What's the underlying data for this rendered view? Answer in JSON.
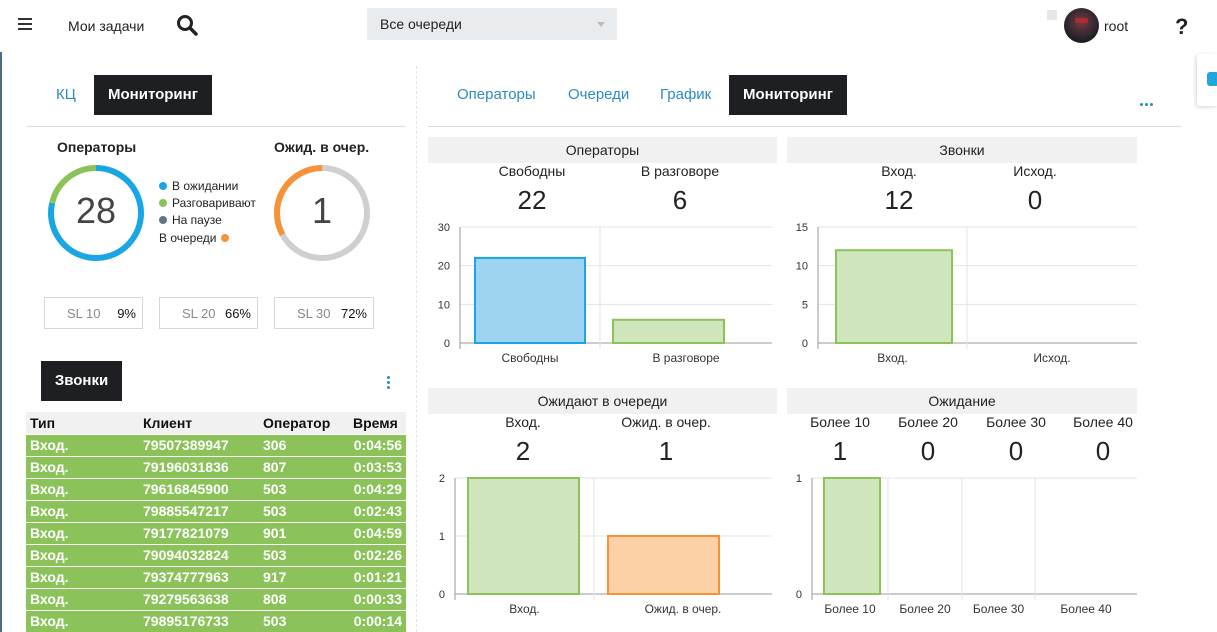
{
  "header": {
    "my_tasks": "Мои задачи",
    "queue_select": "Все очереди",
    "user": "root",
    "help": "?"
  },
  "left": {
    "tabs": [
      {
        "label": "КЦ",
        "active": false
      },
      {
        "label": "Мониторинг",
        "active": true
      }
    ],
    "operators": {
      "title": "Операторы",
      "value": "28",
      "legend": [
        {
          "label": "В ожидании",
          "color": "#1aa6e4"
        },
        {
          "label": "Разговаривают",
          "color": "#8bc35a"
        },
        {
          "label": "На паузе",
          "color": "#5f7585"
        },
        {
          "label": "В очереди",
          "color": "#f7923a"
        }
      ],
      "segments": [
        {
          "name": "В ожидании",
          "value": 22,
          "color": "#1aa6e4"
        },
        {
          "name": "Разговаривают",
          "value": 6,
          "color": "#8bc35a"
        }
      ]
    },
    "queue_wait": {
      "title": "Ожид. в очер.",
      "value": "1",
      "fraction": 0.33,
      "color": "#f7923a"
    },
    "sl": [
      {
        "label": "SL 10",
        "value": "9%"
      },
      {
        "label": "SL 20",
        "value": "66%"
      },
      {
        "label": "SL 30",
        "value": "72%"
      }
    ],
    "calls_button": "Звонки",
    "calls_table": {
      "columns": [
        "Тип",
        "Клиент",
        "Оператор",
        "Время"
      ],
      "rows": [
        [
          "Вход.",
          "79507389947",
          "306",
          "0:04:56"
        ],
        [
          "Вход.",
          "79196031836",
          "807",
          "0:03:53"
        ],
        [
          "Вход.",
          "79616845900",
          "503",
          "0:04:29"
        ],
        [
          "Вход.",
          "79885547217",
          "503",
          "0:02:43"
        ],
        [
          "Вход.",
          "79177821079",
          "901",
          "0:04:59"
        ],
        [
          "Вход.",
          "79094032824",
          "503",
          "0:02:26"
        ],
        [
          "Вход.",
          "79374777963",
          "917",
          "0:01:21"
        ],
        [
          "Вход.",
          "79279563638",
          "808",
          "0:00:33"
        ],
        [
          "Вход.",
          "79895176733",
          "503",
          "0:00:14"
        ]
      ]
    }
  },
  "right": {
    "tabs": [
      {
        "label": "Операторы",
        "active": false
      },
      {
        "label": "Очереди",
        "active": false
      },
      {
        "label": "График",
        "active": false
      },
      {
        "label": "Мониторинг",
        "active": true
      }
    ]
  },
  "chart_data": [
    {
      "type": "bar",
      "title": "Операторы",
      "stats": [
        {
          "label": "Свободны",
          "value": "22"
        },
        {
          "label": "В разговоре",
          "value": "6"
        }
      ],
      "categories": [
        "Свободны",
        "В разговоре"
      ],
      "values": [
        22,
        6
      ],
      "ylim": [
        0,
        30
      ],
      "yticks": [
        0,
        10,
        20,
        30
      ],
      "bar_colors": [
        {
          "fill": "#9fd3f2",
          "stroke": "#1aa6e4"
        },
        {
          "fill": "#cfe6bd",
          "stroke": "#8bc35a"
        }
      ]
    },
    {
      "type": "bar",
      "title": "Звонки",
      "stats": [
        {
          "label": "Вход.",
          "value": "12"
        },
        {
          "label": "Исход.",
          "value": "0"
        }
      ],
      "categories": [
        "Вход.",
        "Исход."
      ],
      "values": [
        12,
        0
      ],
      "ylim": [
        0,
        15
      ],
      "yticks": [
        0,
        5,
        10,
        15
      ],
      "bar_colors": [
        {
          "fill": "#cfe6bd",
          "stroke": "#8bc35a"
        },
        {
          "fill": "#cfe6bd",
          "stroke": "#8bc35a"
        }
      ]
    },
    {
      "type": "bar",
      "title": "Ожидают в очереди",
      "stats": [
        {
          "label": "Вход.",
          "value": "2"
        },
        {
          "label": "Ожид. в очер.",
          "value": "1"
        }
      ],
      "categories": [
        "Вход.",
        "Ожид. в очер."
      ],
      "values": [
        2,
        1
      ],
      "ylim": [
        0,
        2
      ],
      "yticks": [
        0,
        1,
        2
      ],
      "bar_colors": [
        {
          "fill": "#cfe6bd",
          "stroke": "#8bc35a"
        },
        {
          "fill": "#fdd1a6",
          "stroke": "#f7923a"
        }
      ]
    },
    {
      "type": "bar",
      "title": "Ожидание",
      "stats": [
        {
          "label": "Более 10",
          "value": "1"
        },
        {
          "label": "Более 20",
          "value": "0"
        },
        {
          "label": "Более 30",
          "value": "0"
        },
        {
          "label": "Более 40",
          "value": "0"
        }
      ],
      "categories": [
        "Более 10",
        "Более 20",
        "Более 30",
        "Более 40"
      ],
      "values": [
        1,
        0,
        0,
        0
      ],
      "ylim": [
        0,
        1
      ],
      "yticks": [
        0,
        1
      ],
      "bar_colors": [
        {
          "fill": "#cfe6bd",
          "stroke": "#8bc35a"
        },
        {
          "fill": "#cfe6bd",
          "stroke": "#8bc35a"
        },
        {
          "fill": "#cfe6bd",
          "stroke": "#8bc35a"
        },
        {
          "fill": "#cfe6bd",
          "stroke": "#8bc35a"
        }
      ]
    }
  ]
}
